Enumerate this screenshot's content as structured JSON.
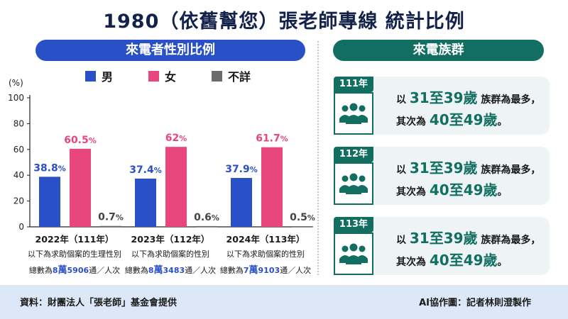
{
  "title": "1980（依舊幫您）張老師專線 統計比例",
  "left_header": "來電者性別比例",
  "right_header": "來電族群",
  "colors": {
    "male": "#2a50c8",
    "female": "#e8467c",
    "unknown": "#6b6b6b",
    "teal": "#136e62"
  },
  "chart_data": {
    "type": "bar",
    "unit_label": "(%)",
    "ylim": [
      0,
      100
    ],
    "yticks": [
      0,
      20,
      40,
      60,
      80,
      100
    ],
    "legend": [
      "男",
      "女",
      "不詳"
    ],
    "categories": [
      {
        "year": "2022年（111年）",
        "desc": "以下為求助個案的生理性別",
        "total_prefix": "總數為",
        "total_a": "8",
        "total_b": "萬",
        "total_c": "5906",
        "total_suffix": "通／人次"
      },
      {
        "year": "2023年（112年）",
        "desc": "以下為求助個案的性別",
        "total_prefix": "總數為",
        "total_a": "8",
        "total_b": "萬",
        "total_c": "3483",
        "total_suffix": "通／人次"
      },
      {
        "year": "2024年（113年）",
        "desc": "以下為求助個案的性別",
        "total_prefix": "總數為",
        "total_a": "7",
        "total_b": "萬",
        "total_c": "9103",
        "total_suffix": "通／人次"
      }
    ],
    "series": [
      {
        "name": "男",
        "values": [
          38.8,
          37.4,
          37.9
        ],
        "labels": [
          "38.8",
          "37.4",
          "37.9"
        ]
      },
      {
        "name": "女",
        "values": [
          60.5,
          62,
          61.7
        ],
        "labels": [
          "60.5",
          "62",
          "61.7"
        ]
      },
      {
        "name": "不詳",
        "values": [
          0.7,
          0.6,
          0.5
        ],
        "labels": [
          "0.7",
          "0.6",
          "0.5"
        ]
      }
    ]
  },
  "age_groups": [
    {
      "year": "111年",
      "line1_pre": "以",
      "line1_hl": "31至39歲",
      "line1_post": "族群為最多，",
      "line2_pre": "其次為",
      "line2_hl": "40至49歲",
      "line2_post": "。"
    },
    {
      "year": "112年",
      "line1_pre": "以",
      "line1_hl": "31至39歲",
      "line1_post": "族群為最多，",
      "line2_pre": "其次為",
      "line2_hl": "40至49歲",
      "line2_post": "。"
    },
    {
      "year": "113年",
      "line1_pre": "以",
      "line1_hl": "31至39歲",
      "line1_post": "族群為最多，",
      "line2_pre": "其次為",
      "line2_hl": "40至49歲",
      "line2_post": "。"
    }
  ],
  "footer": {
    "source": "資料：財團法人「張老師」基金會提供",
    "credit": "AI協作圖：記者林則澄製作"
  },
  "pct_sign": "%"
}
